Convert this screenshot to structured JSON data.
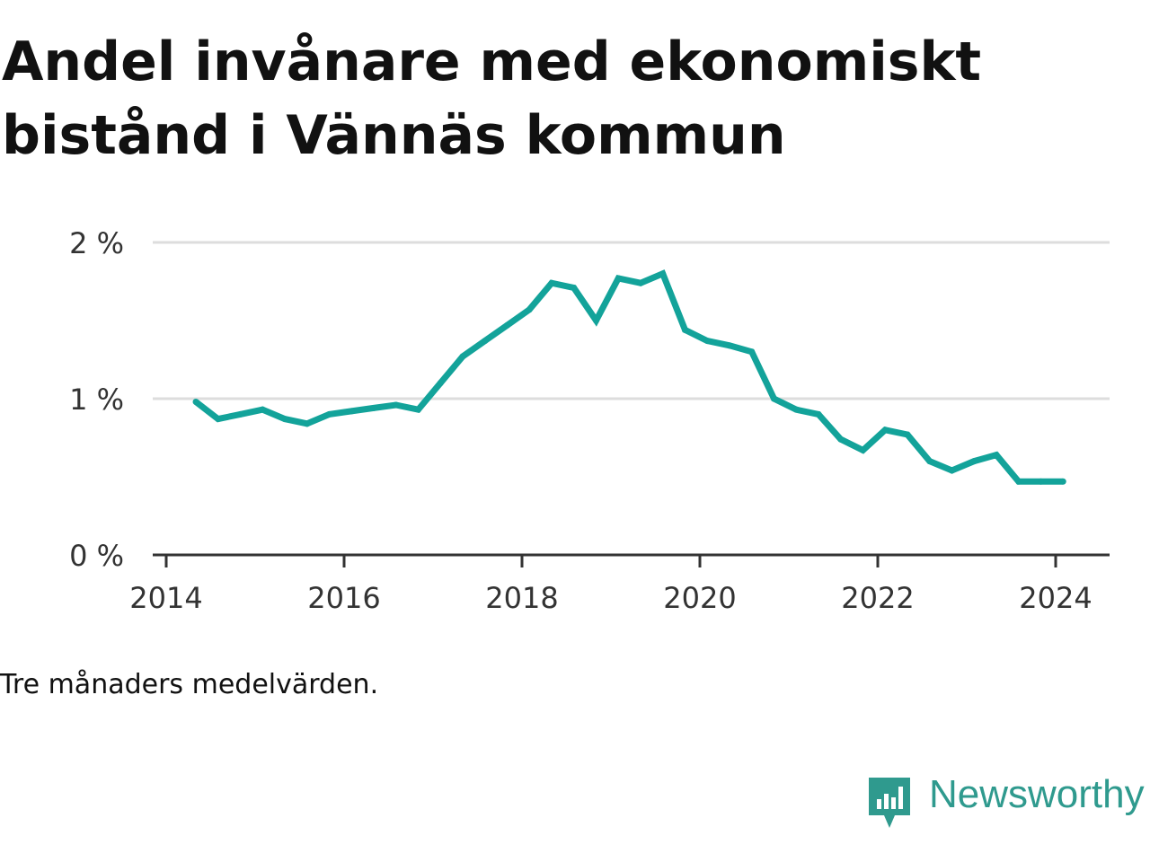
{
  "title": "Andel invånare med ekonomiskt bistånd i Vännäs kommun",
  "caption": "Tre månaders medelvärden.",
  "brand": {
    "name": "Newsworthy",
    "icon": "newsworthy-logo-icon",
    "color": "#2f9a8e"
  },
  "colors": {
    "line": "#13a39a",
    "grid": "#dddddd",
    "axis": "#333333",
    "text": "#333333"
  },
  "chart_data": {
    "type": "line",
    "title": "Andel invånare med ekonomiskt bistånd i Vännäs kommun",
    "xlabel": "",
    "ylabel": "",
    "x_ticks": [
      "2014",
      "2016",
      "2018",
      "2020",
      "2022",
      "2024"
    ],
    "y_ticks": [
      "0 %",
      "1 %",
      "2 %"
    ],
    "ylim": [
      0,
      2
    ],
    "xlim": [
      "2014-01",
      "2024-10"
    ],
    "grid": true,
    "legend": "none",
    "series": [
      {
        "name": "",
        "points": [
          [
            "2014-05",
            0.98
          ],
          [
            "2014-08",
            0.87
          ],
          [
            "2014-11",
            0.9
          ],
          [
            "2015-02",
            0.93
          ],
          [
            "2015-05",
            0.87
          ],
          [
            "2015-08",
            0.84
          ],
          [
            "2015-11",
            0.9
          ],
          [
            "2016-02",
            0.92
          ],
          [
            "2016-05",
            0.94
          ],
          [
            "2016-08",
            0.96
          ],
          [
            "2016-11",
            0.93
          ],
          [
            "2017-02",
            1.1
          ],
          [
            "2017-05",
            1.27
          ],
          [
            "2017-08",
            1.37
          ],
          [
            "2017-11",
            1.47
          ],
          [
            "2018-02",
            1.57
          ],
          [
            "2018-05",
            1.74
          ],
          [
            "2018-08",
            1.71
          ],
          [
            "2018-11",
            1.5
          ],
          [
            "2019-02",
            1.77
          ],
          [
            "2019-05",
            1.74
          ],
          [
            "2019-08",
            1.8
          ],
          [
            "2019-11",
            1.44
          ],
          [
            "2020-02",
            1.37
          ],
          [
            "2020-05",
            1.34
          ],
          [
            "2020-08",
            1.3
          ],
          [
            "2020-11",
            1.0
          ],
          [
            "2021-02",
            0.93
          ],
          [
            "2021-05",
            0.9
          ],
          [
            "2021-08",
            0.74
          ],
          [
            "2021-11",
            0.67
          ],
          [
            "2022-02",
            0.8
          ],
          [
            "2022-05",
            0.77
          ],
          [
            "2022-08",
            0.6
          ],
          [
            "2022-11",
            0.54
          ],
          [
            "2023-02",
            0.6
          ],
          [
            "2023-05",
            0.64
          ],
          [
            "2023-08",
            0.47
          ],
          [
            "2023-11",
            0.47
          ],
          [
            "2024-02",
            0.47
          ]
        ]
      }
    ]
  }
}
